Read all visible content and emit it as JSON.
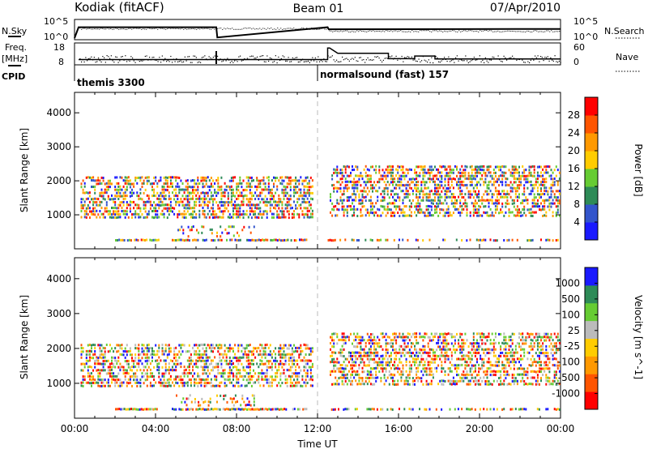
{
  "header": {
    "station": "Kodiak (fitACF)",
    "beam": "Beam 01",
    "date": "07/Apr/2010"
  },
  "left_labels": {
    "nsky": "N.Sky",
    "freq": "Freq.",
    "freq_unit": "[MHz]",
    "cpid": "CPID"
  },
  "right_labels": {
    "nsearch": "N.Search",
    "nave": "Nave"
  },
  "cpid_labels": {
    "first": "themis 3300",
    "second": "normalsound (fast) 157"
  },
  "colors": {
    "power_scale": [
      "#1a1aff",
      "#3355cc",
      "#2e8b57",
      "#66cc33",
      "#ffcc00",
      "#ff9900",
      "#ff5500",
      "#ff0000"
    ],
    "velocity_scale": [
      "#ff0000",
      "#ff5500",
      "#ff9900",
      "#ffcc00",
      "#bbbbbb",
      "#66cc33",
      "#2e8b57",
      "#1a1aff"
    ],
    "frame": "#000000",
    "midnight_line": "#aaaaaa"
  },
  "chart_data": [
    {
      "type": "line",
      "panel": "noise",
      "ylabel_left": "N.Sky",
      "ylabel_right": "N.Search",
      "left_ticks": [
        "10^5",
        "10^0"
      ],
      "right_ticks": [
        "10^5",
        "10^0"
      ],
      "x_hours": [
        0,
        0.2,
        7.0,
        7.05,
        12.5,
        12.55,
        24
      ],
      "sky_level_log": [
        0,
        3.2,
        3.2,
        0.2,
        3.2,
        2.6,
        2.7
      ]
    },
    {
      "type": "line",
      "panel": "freq_nave",
      "ylabel_left": "Freq. [MHz]",
      "ylabel_right": "Nave",
      "left_ticks": [
        "18",
        "8"
      ],
      "right_ticks": [
        "60",
        "0"
      ],
      "freq_steps": [
        {
          "x0": 0.2,
          "x1": 12.5,
          "mhz": 10.5
        },
        {
          "x0": 12.5,
          "x1": 12.6,
          "mhz": 17
        },
        {
          "x0": 13,
          "x1": 15.5,
          "mhz": 14
        },
        {
          "x0": 15.5,
          "x1": 16.8,
          "mhz": 11
        },
        {
          "x0": 16.8,
          "x1": 17.8,
          "mhz": 12.5
        },
        {
          "x0": 17.8,
          "x1": 24,
          "mhz": 10.8
        }
      ]
    },
    {
      "type": "heatmap",
      "panel": "power",
      "ylabel": "Slant Range [km]",
      "yticks": [
        "1000",
        "2000",
        "3000",
        "4000"
      ],
      "ylim": [
        0,
        4600
      ],
      "colorbar_label": "Power [dB]",
      "colorbar_ticks": [
        "4",
        "8",
        "12",
        "16",
        "20",
        "24",
        "28"
      ]
    },
    {
      "type": "heatmap",
      "panel": "velocity",
      "ylabel": "Slant Range [km]",
      "yticks": [
        "1000",
        "2000",
        "3000",
        "4000"
      ],
      "ylim": [
        0,
        4600
      ],
      "colorbar_label": "Velocity [m s^-1]",
      "colorbar_ticks": [
        "1000",
        "500",
        "100",
        "25",
        "-25",
        "-100",
        "-500",
        "-1000"
      ]
    }
  ],
  "x_axis": {
    "label": "Time UT",
    "ticks": [
      "00:00",
      "04:00",
      "08:00",
      "12:00",
      "16:00",
      "20:00",
      "00:00"
    ]
  }
}
